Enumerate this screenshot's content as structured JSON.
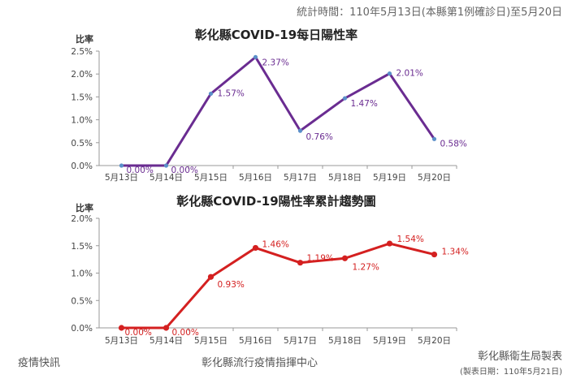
{
  "header": {
    "stat_period": "統計時間：110年5月13日(本縣第1例確診日)至5月20日"
  },
  "footer": {
    "left": "疫情快訊",
    "center": "彰化縣流行疫情指揮中心",
    "right": "彰化縣衛生局製表",
    "right_sub": "(製表日期：110年5月21日)"
  },
  "chart_data": [
    {
      "type": "line",
      "title": "彰化縣COVID-19每日陽性率",
      "ylabel": "比率",
      "xlabel": "",
      "categories": [
        "5月13日",
        "5月14日",
        "5月15日",
        "5月16日",
        "5月17日",
        "5月18日",
        "5月19日",
        "5月20日"
      ],
      "values": [
        0.0,
        0.0,
        1.57,
        2.37,
        0.76,
        1.47,
        2.01,
        0.58
      ],
      "data_labels": [
        "0.00%",
        "0.00%",
        "1.57%",
        "2.37%",
        "0.76%",
        "1.47%",
        "2.01%",
        "0.58%"
      ],
      "yticks": [
        "0.0%",
        "0.5%",
        "1.0%",
        "1.5%",
        "2.0%",
        "2.5%"
      ],
      "ylim": [
        0,
        2.5
      ],
      "line_color": "#6a2c91",
      "marker_color": "#5b8fc9",
      "label_color": "#6a2c91",
      "grid": false
    },
    {
      "type": "line",
      "title": "彰化縣COVID-19陽性率累計趨勢圖",
      "ylabel": "比率",
      "xlabel": "",
      "categories": [
        "5月13日",
        "5月14日",
        "5月15日",
        "5月16日",
        "5月17日",
        "5月18日",
        "5月19日",
        "5月20日"
      ],
      "values": [
        0.0,
        0.0,
        0.93,
        1.46,
        1.19,
        1.27,
        1.54,
        1.34
      ],
      "data_labels": [
        "0.00%",
        "0.00%",
        "0.93%",
        "1.46%",
        "1.19%",
        "1.27%",
        "1.54%",
        "1.34%"
      ],
      "yticks": [
        "0.0%",
        "0.5%",
        "1.0%",
        "1.5%",
        "2.0%"
      ],
      "ylim": [
        0,
        2.0
      ],
      "line_color": "#d42020",
      "marker_color": "#d42020",
      "label_color": "#d42020",
      "grid": false
    }
  ]
}
